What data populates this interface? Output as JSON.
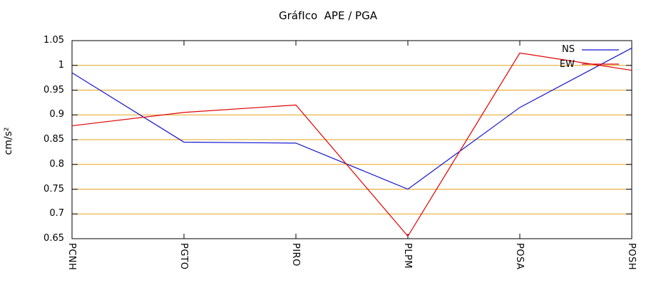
{
  "chart_data": {
    "type": "line",
    "title": "GráfIco  APE / PGA",
    "ylabel": "cm/s²",
    "categories": [
      "PCNH",
      "PGTO",
      "PIRO",
      "PLPM",
      "POSA",
      "POSH"
    ],
    "series": [
      {
        "name": "NS",
        "color": "#1414d2",
        "values": [
          0.985,
          0.845,
          0.843,
          0.75,
          0.915,
          1.035
        ]
      },
      {
        "name": "EW",
        "color": "#e00000",
        "values": [
          0.878,
          0.905,
          0.92,
          0.655,
          1.025,
          0.99
        ]
      }
    ],
    "ylim": [
      0.65,
      1.05
    ],
    "y_tick_values": [
      0.65,
      0.7,
      0.75,
      0.8,
      0.85,
      0.9,
      0.95,
      1.0,
      1.05
    ],
    "y_tick_labels": [
      "0.65",
      "0.7",
      "0.75",
      "0.8",
      "0.85",
      "0.9",
      "0.95",
      "1",
      "1.05"
    ],
    "grid_values": [
      0.7,
      0.75,
      0.8,
      0.85,
      0.9,
      0.95,
      1.0
    ],
    "grid": true,
    "grid_color": "#e2a41c",
    "axis_color": "#000000",
    "background_color": "#ffffff",
    "legend_position": "top-right"
  }
}
